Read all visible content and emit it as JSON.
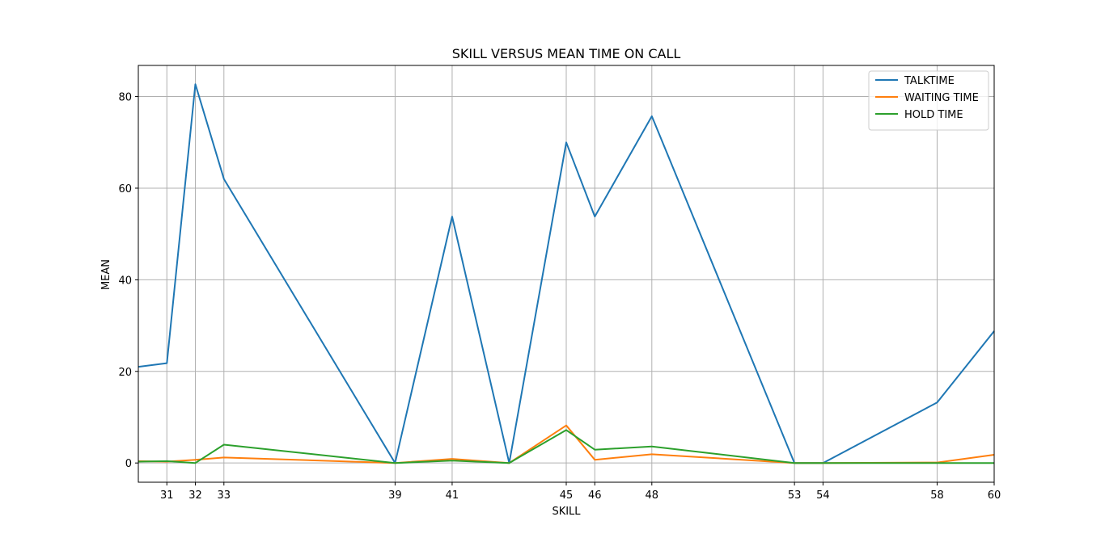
{
  "chart_data": {
    "type": "line",
    "title": "SKILL VERSUS MEAN TIME ON CALL",
    "xlabel": "SKILL",
    "ylabel": "MEAN",
    "x": [
      30,
      31,
      32,
      33,
      39,
      41,
      43,
      45,
      46,
      48,
      53,
      54,
      58,
      60
    ],
    "xticks": [
      31,
      32,
      33,
      39,
      41,
      45,
      46,
      48,
      53,
      54,
      58,
      60
    ],
    "yticks": [
      0,
      20,
      40,
      60,
      80
    ],
    "xlim": [
      30,
      60
    ],
    "ylim": [
      -4.2,
      86.8
    ],
    "grid": true,
    "legend_position": "top-right",
    "series": [
      {
        "name": "TALKTIME",
        "color": "#1f77b4",
        "values": [
          21.0,
          21.8,
          82.7,
          62.0,
          0.0,
          53.8,
          0.0,
          70.0,
          53.8,
          75.7,
          0.0,
          0.0,
          13.2,
          28.8
        ]
      },
      {
        "name": "WAITING TIME",
        "color": "#ff7f0e",
        "values": [
          0.4,
          0.3,
          0.7,
          1.2,
          0.0,
          0.9,
          0.0,
          8.2,
          0.7,
          1.9,
          0.0,
          0.0,
          0.1,
          1.8
        ]
      },
      {
        "name": "HOLD TIME",
        "color": "#2ca02c",
        "values": [
          0.3,
          0.4,
          0.0,
          4.0,
          0.0,
          0.5,
          0.0,
          7.2,
          2.9,
          3.6,
          0.0,
          0.0,
          0.0,
          0.0
        ]
      }
    ]
  }
}
